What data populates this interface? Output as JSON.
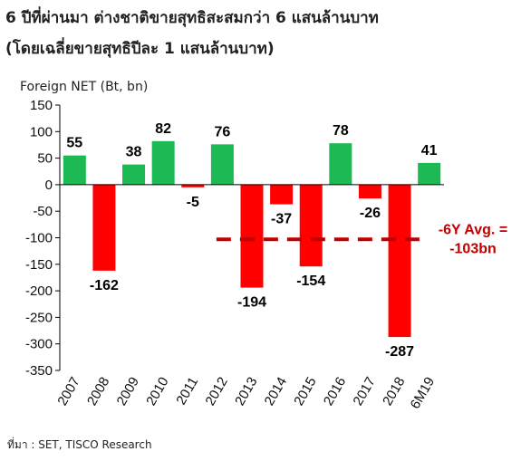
{
  "header": {
    "title": "6 ปีที่ผ่านมา ต่างชาติขายสุทธิสะสมกว่า 6 แสนล้านบาท",
    "subtitle": "(โดยเฉลี่ยขายสุทธิปีละ 1 แสนล้านบาท)"
  },
  "footer": {
    "source": "ที่มา : SET, TISCO Research"
  },
  "colors": {
    "positive": "#1db954",
    "negative": "#ff0000",
    "avg_line": "#c00000",
    "avg_label": "#c00000"
  },
  "chart_data": {
    "type": "bar",
    "title": "6 ปีที่ผ่านมา ต่างชาติขายสุทธิสะสมกว่า 6 แสนล้านบาท",
    "subtitle": "(โดยเฉลี่ยขายสุทธิปีละ 1 แสนล้านบาท)",
    "ylabel": "Foreign NET (Bt, bn)",
    "xlabel": "",
    "categories": [
      "2007",
      "2008",
      "2009",
      "2010",
      "2011",
      "2012",
      "2013",
      "2014",
      "2015",
      "2016",
      "2017",
      "2018",
      "6M19"
    ],
    "values": [
      55,
      -162,
      38,
      82,
      -5,
      76,
      -194,
      -37,
      -154,
      78,
      -26,
      -287,
      41
    ],
    "data_labels": [
      "55",
      "-162",
      "38",
      "82",
      "-5",
      "76",
      "-194",
      "-37",
      "-154",
      "78",
      "-26",
      "-287",
      "41"
    ],
    "ylim": [
      -350,
      150
    ],
    "yticks": [
      150,
      100,
      50,
      0,
      -50,
      -100,
      -150,
      -200,
      -250,
      -300,
      -350
    ],
    "ytick_labels": [
      "150",
      "100",
      "50",
      "0",
      "-50",
      "-100",
      "-150",
      "-200",
      "-250",
      "-300",
      "-350"
    ],
    "grid": false,
    "legend": "none",
    "reference_line": {
      "value": -103,
      "style": "dashed",
      "label_line1": "-6Y Avg. =",
      "label_line2": "-103bn"
    }
  }
}
